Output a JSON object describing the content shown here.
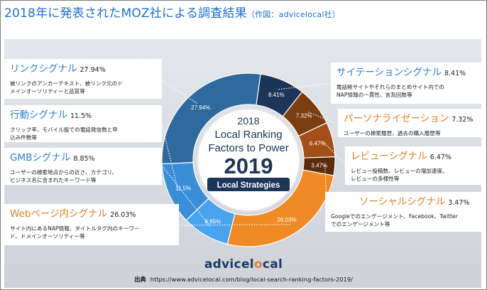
{
  "header": {
    "title": "2018年に発表されたMOZ社による調査結果",
    "subtitle": "（作図：advicelocal社）"
  },
  "center": {
    "year": "2018",
    "line1": "Local Ranking",
    "line2": "Factors to Power",
    "big_year": "2019",
    "badge": "Local Strategies"
  },
  "colors": {
    "dark_navy": "#1d3557",
    "steel_blue": "#2f6a9e",
    "sky_blue": "#3a8ed8",
    "light_blue": "#4aa3ee",
    "orange": "#f08a24",
    "brown": "#7a3e12",
    "rust": "#a34f17",
    "dark_brown": "#5b2c0c",
    "label_blue": "#2b7fd6",
    "label_orange": "#e67e22"
  },
  "chart_data": {
    "type": "pie",
    "title": "Local Ranking Factors to Power 2019",
    "categories": [
      "サイテーションシグナル",
      "パーソナライゼーション",
      "レビューシグナル",
      "ソーシャルシグナル",
      "Webページ内シグナル",
      "GMBシグナル",
      "行動シグナル",
      "リンクシグナル"
    ],
    "values": [
      8.41,
      7.32,
      6.47,
      3.47,
      26.03,
      8.85,
      11.5,
      27.94
    ],
    "labels": [
      "8.41%",
      "7.32%",
      "6.47%",
      "3.47%",
      "26.03%",
      "8.85%",
      "11.5%",
      "27.94%"
    ],
    "slice_colors": [
      "#1d3557",
      "#7a3e12",
      "#a34f17",
      "#5b2c0c",
      "#f08a24",
      "#4aa3ee",
      "#3a8ed8",
      "#2f6a9e"
    ]
  },
  "factors": [
    {
      "name": "リンクシグナル",
      "pct": "27.94%",
      "desc": "被リンクのアンカーテキスト、被リンク元のド\nメインオーソリティーと品質等"
    },
    {
      "name": "行動シグナル",
      "pct": "11.5%",
      "desc": "クリック率、モバイル版での電話発信数と申\n込み件数等"
    },
    {
      "name": "GMBシグナル",
      "pct": "8.85%",
      "desc": "ユーザーの検索地点からの近さ、カテゴリ、\nビジネス名に含まれたキーワード等"
    },
    {
      "name": "Webページ内シグナル",
      "pct": "26.03%",
      "desc": "サイト内にあるNAP情報、タイトルタグ内のキーワー\nド、ドメインオーソリティー等"
    },
    {
      "name": "サイテーションシグナル",
      "pct": "8.41%",
      "desc": "電話帳サイトやそれらのまとめサイト内での\nNAP情報の一貫性、言及回数等"
    },
    {
      "name": "パーソナライゼーション",
      "pct": "7.32%",
      "desc": "ユーザーの検索履歴、過去の購入履歴等"
    },
    {
      "name": "レビューシグナル",
      "pct": "6.47%",
      "desc": "レビュー投稿数、レビューの増加速度、\nレビューの多様性等"
    },
    {
      "name": "ソーシャルシグナル",
      "pct": "3.47%",
      "desc": "Googleでのエンゲージメント、Facebook、Twitter\nでのエンゲージメント等"
    }
  ],
  "logo": {
    "part1": "advicel",
    "part2": "o",
    "part3": "cal"
  },
  "source": {
    "label": "出典",
    "url": "https://www.advicelocal.com/blog/local-search-ranking-factors-2019/"
  }
}
